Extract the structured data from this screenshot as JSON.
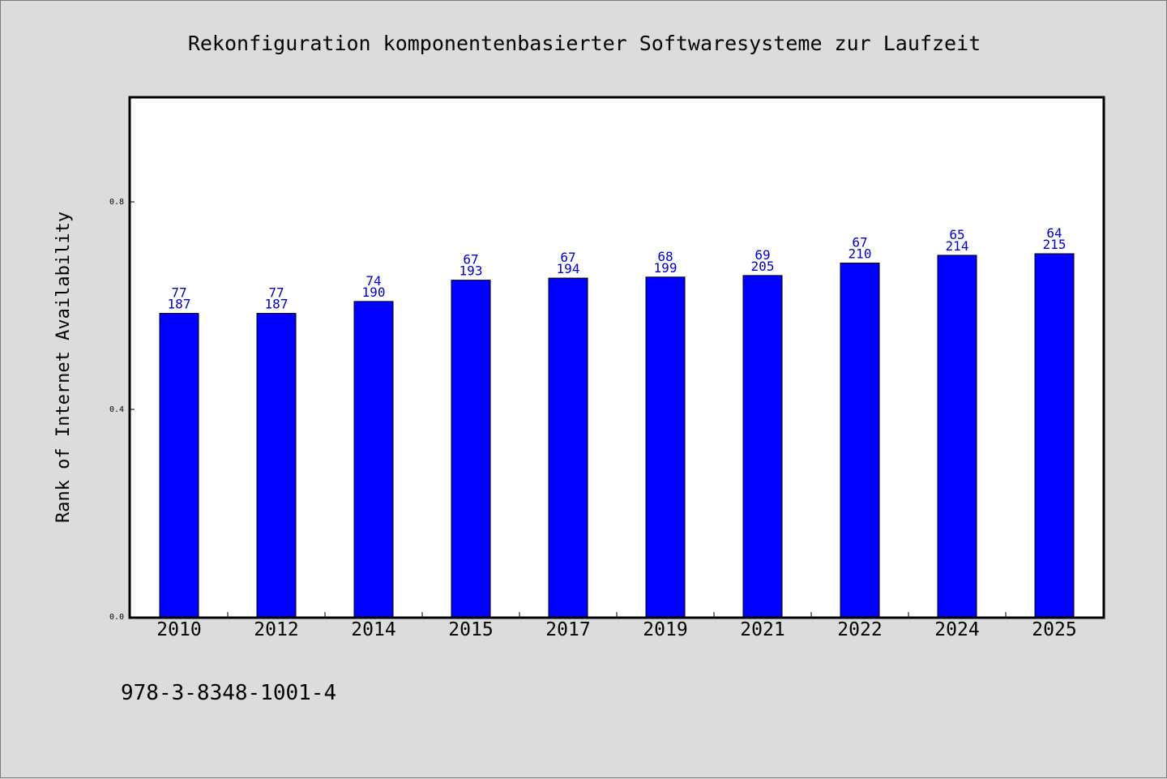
{
  "chart_data": {
    "type": "bar",
    "title": "Rekonfiguration komponentenbasierter Softwaresysteme zur Laufzeit",
    "xlabel": "",
    "ylabel": "Rank of Internet Availability",
    "categories": [
      "2010",
      "2012",
      "2014",
      "2015",
      "2017",
      "2019",
      "2021",
      "2022",
      "2024",
      "2025"
    ],
    "values": [
      0.585,
      0.585,
      0.608,
      0.649,
      0.653,
      0.655,
      0.658,
      0.682,
      0.697,
      0.7
    ],
    "labels_top": [
      "77",
      "77",
      "74",
      "67",
      "67",
      "68",
      "69",
      "67",
      "65",
      "64"
    ],
    "labels_bottom": [
      "187",
      "187",
      "190",
      "193",
      "194",
      "199",
      "205",
      "210",
      "214",
      "215"
    ],
    "ylim": [
      0,
      1.0
    ],
    "yticks": [
      "0.0",
      "0.4",
      "0.8"
    ],
    "bar_color": "#0000ff",
    "label_color": "#0000cc",
    "grid": false,
    "legend": "none"
  },
  "footer_text": "978-3-8348-1001-4"
}
